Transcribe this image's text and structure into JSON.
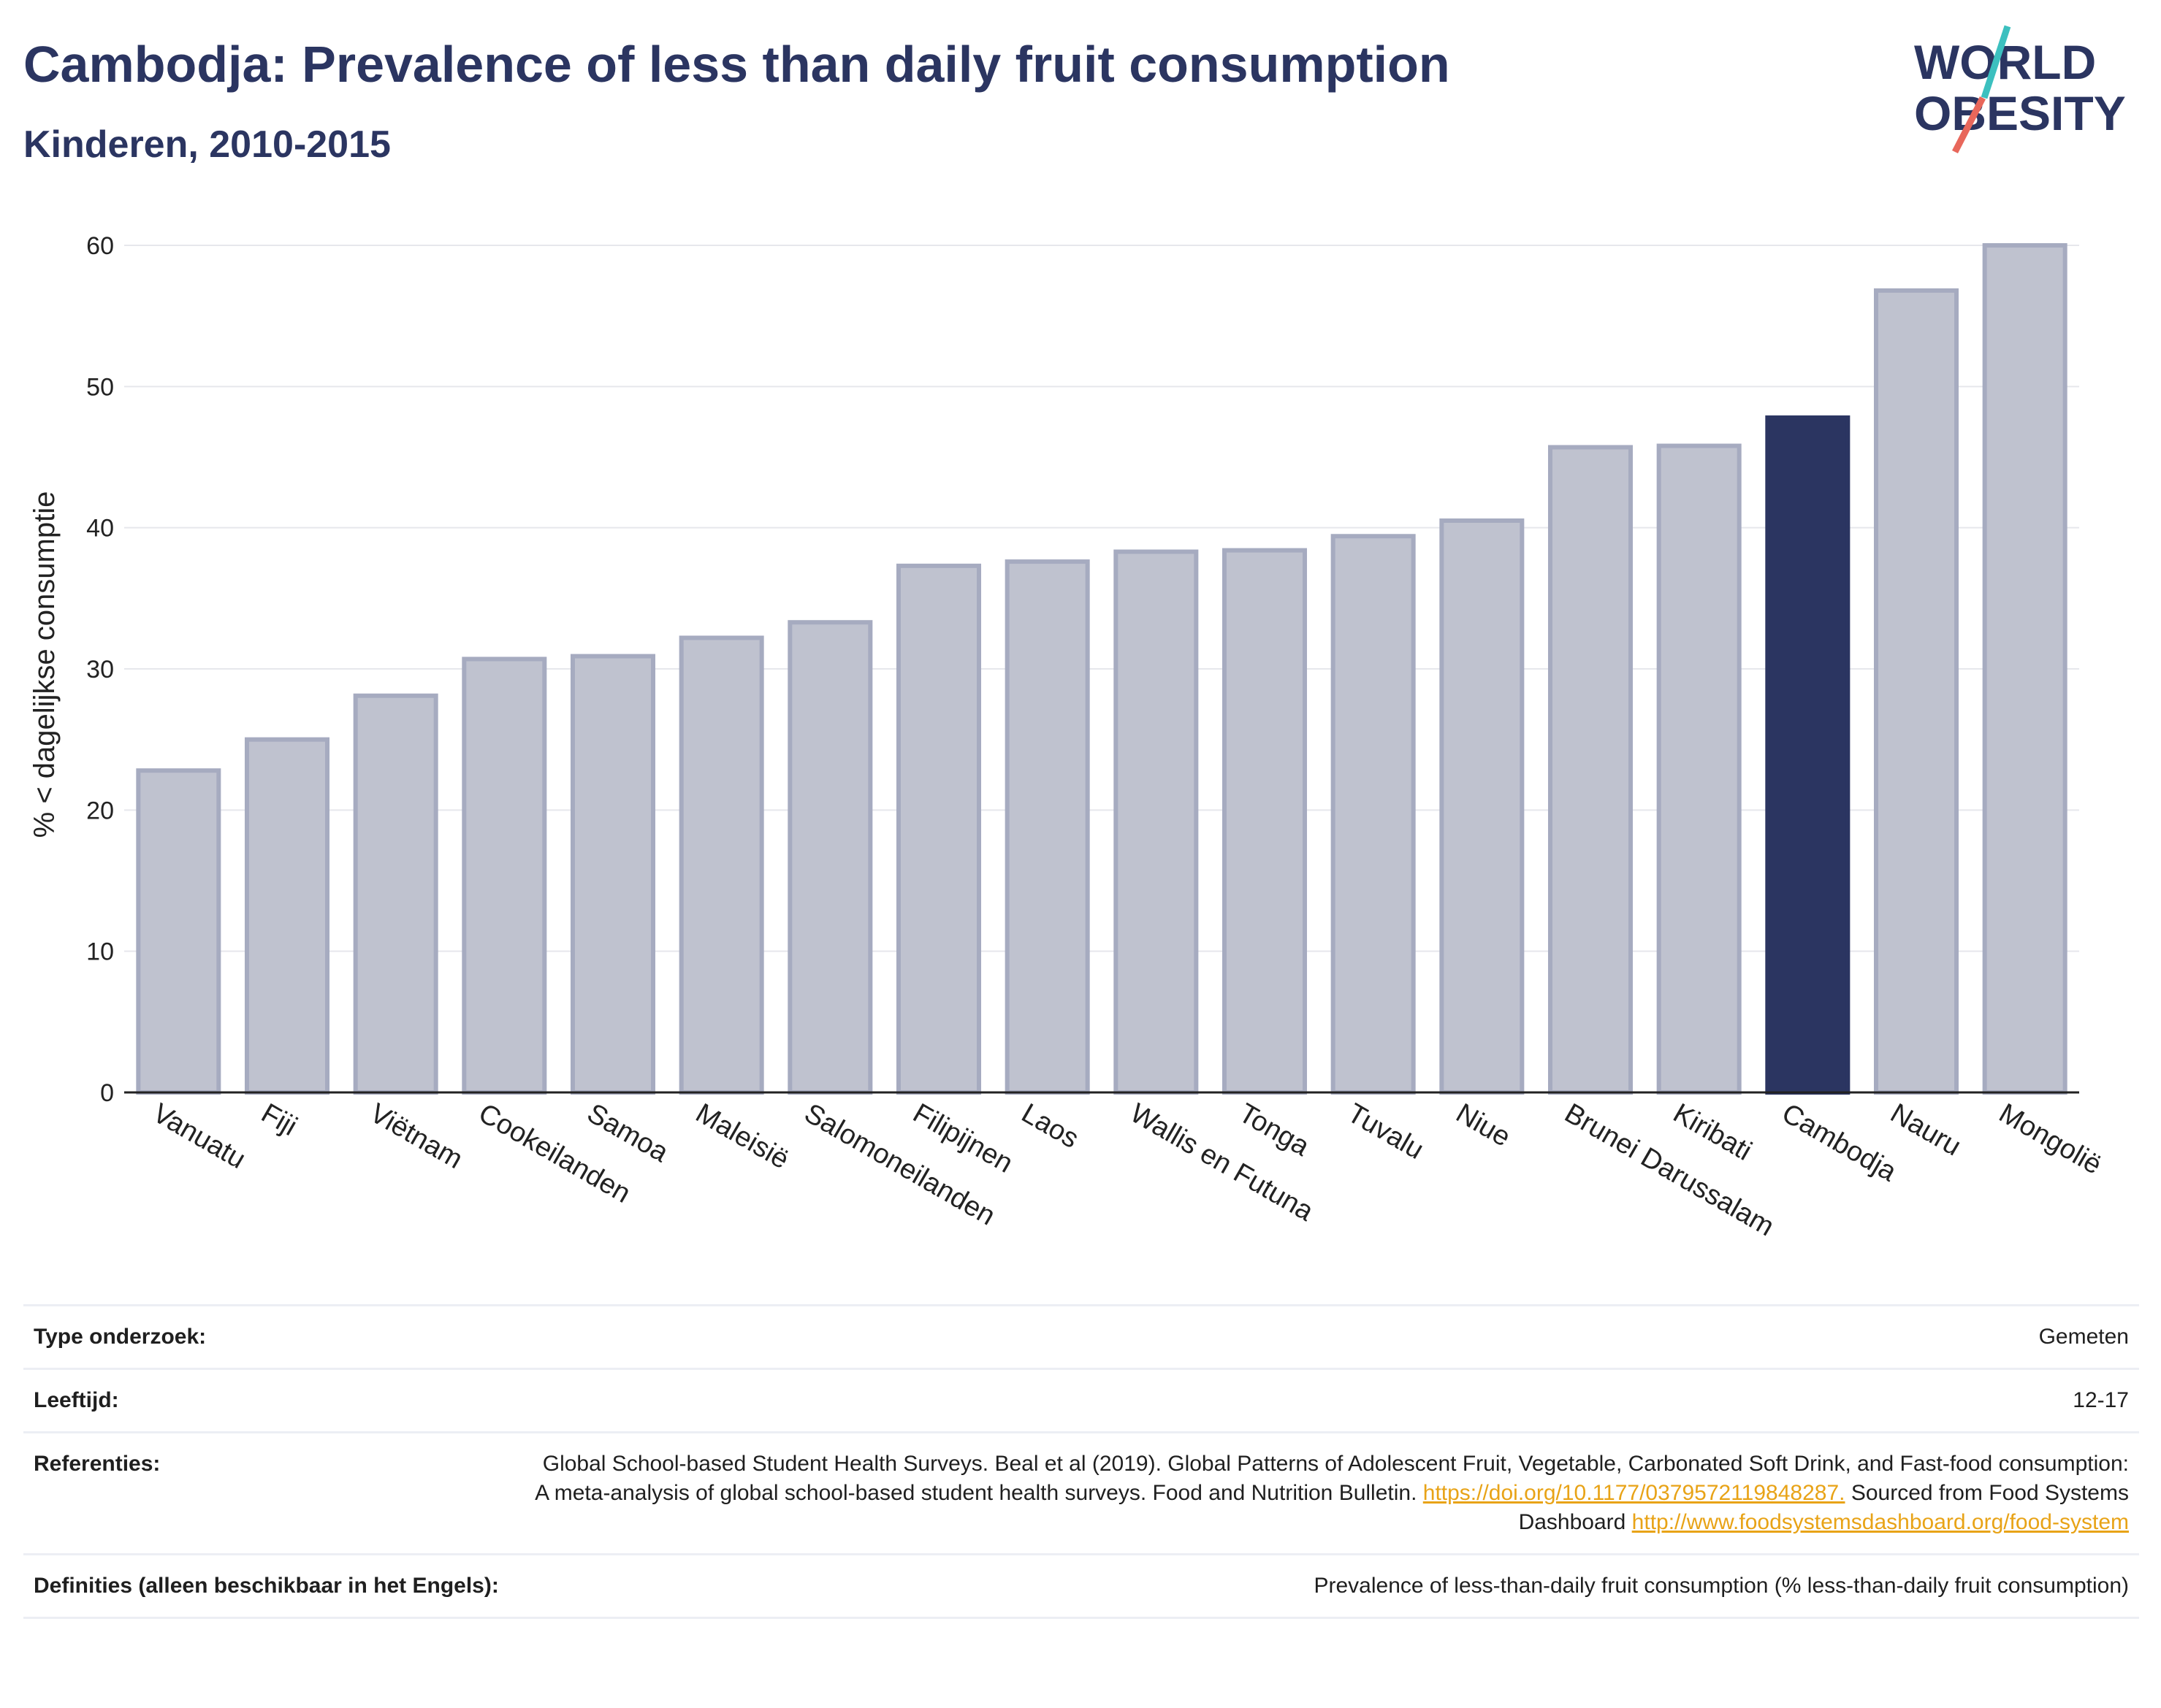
{
  "header": {
    "title": "Cambodja: Prevalence of less than daily fruit consumption",
    "subtitle": "Kinderen, 2010-2015"
  },
  "logo": {
    "line1": "WORLD",
    "line2": "OBESITY",
    "colors": {
      "text": "#2b3561",
      "slash_teal": "#3cc0bf",
      "slash_red": "#e8675b"
    }
  },
  "chart_data": {
    "type": "bar",
    "categories": [
      "Vanuatu",
      "Fiji",
      "Viëtnam",
      "Cookeilanden",
      "Samoa",
      "Maleisië",
      "Salomoneilanden",
      "Filipijnen",
      "Laos",
      "Wallis en Futuna",
      "Tonga",
      "Tuvalu",
      "Niue",
      "Brunei Darussalam",
      "Kiribati",
      "Cambodja",
      "Nauru",
      "Mongolië"
    ],
    "values": [
      22.8,
      25.0,
      28.1,
      30.7,
      30.9,
      32.2,
      33.3,
      37.3,
      37.6,
      38.3,
      38.4,
      39.4,
      40.5,
      45.7,
      45.8,
      47.8,
      56.8,
      60.0
    ],
    "highlight": "Cambodja",
    "ylabel": "% < dagelijkse consumptie",
    "xlabel": "",
    "ylim": [
      0,
      60
    ],
    "yticks": [
      0,
      10,
      20,
      30,
      40,
      50,
      60
    ],
    "grid": true,
    "colors": {
      "bar": "#bfc2cf",
      "bar_edge": "#a6abc0",
      "highlight": "#2b3561"
    }
  },
  "info": {
    "rows": [
      {
        "label": "Type onderzoek:",
        "value": "Gemeten"
      },
      {
        "label": "Leeftijd:",
        "value": "12-17"
      },
      {
        "label": "Referenties:",
        "text1": "Global School-based Student Health Surveys. Beal et al (2019). Global Patterns of Adolescent Fruit, Vegetable, Carbonated Soft Drink, and Fast-food consumption: A meta-analysis of global school-based student health surveys. Food and Nutrition Bulletin.",
        "link1": "https://doi.org/10.1177/0379572119848287.",
        "text2": "Sourced from Food Systems Dashboard",
        "link2": "http://www.foodsystemsdashboard.org/food-system"
      },
      {
        "label": "Definities (alleen beschikbaar in het Engels):",
        "value": "Prevalence of less-than-daily fruit consumption (% less-than-daily fruit consumption)"
      }
    ]
  }
}
